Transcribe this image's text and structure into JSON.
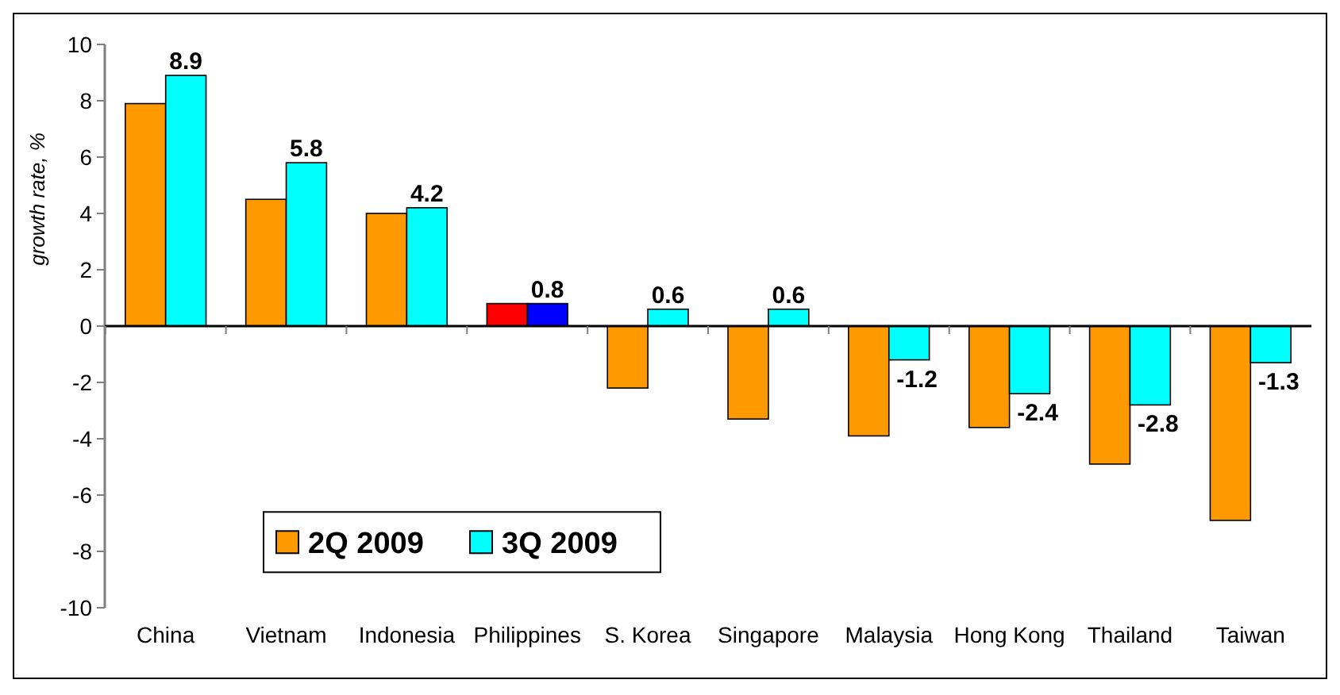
{
  "chart_data": {
    "type": "bar",
    "ylabel": "growth rate, %",
    "categories": [
      "China",
      "Vietnam",
      "Indonesia",
      "Philippines",
      "S. Korea",
      "Singapore",
      "Malaysia",
      "Hong Kong",
      "Thailand",
      "Taiwan"
    ],
    "series": [
      {
        "name": "2Q 2009",
        "color": "#ff9900",
        "colors": [
          "#ff9900",
          "#ff9900",
          "#ff9900",
          "#ff0000",
          "#ff9900",
          "#ff9900",
          "#ff9900",
          "#ff9900",
          "#ff9900",
          "#ff9900"
        ],
        "values": [
          7.9,
          4.5,
          4.0,
          0.8,
          -2.2,
          -3.3,
          -3.9,
          -3.6,
          -4.9,
          -6.9
        ]
      },
      {
        "name": "3Q 2009",
        "color": "#00ffff",
        "colors": [
          "#00ffff",
          "#00ffff",
          "#00ffff",
          "#0000ff",
          "#00ffff",
          "#00ffff",
          "#00ffff",
          "#00ffff",
          "#00ffff",
          "#00ffff"
        ],
        "values": [
          8.9,
          5.8,
          4.2,
          0.8,
          0.6,
          0.6,
          -1.2,
          -2.4,
          -2.8,
          -1.3
        ],
        "value_labels": [
          "8.9",
          "5.8",
          "4.2",
          "0.8",
          "0.6",
          "0.6",
          "-1.2",
          "-2.4",
          "-2.8",
          "-1.3"
        ]
      }
    ],
    "ylim": [
      -10,
      10
    ],
    "yticks": [
      -10,
      -8,
      -6,
      -4,
      -2,
      0,
      2,
      4,
      6,
      8,
      10
    ],
    "legend": "bottom left"
  }
}
